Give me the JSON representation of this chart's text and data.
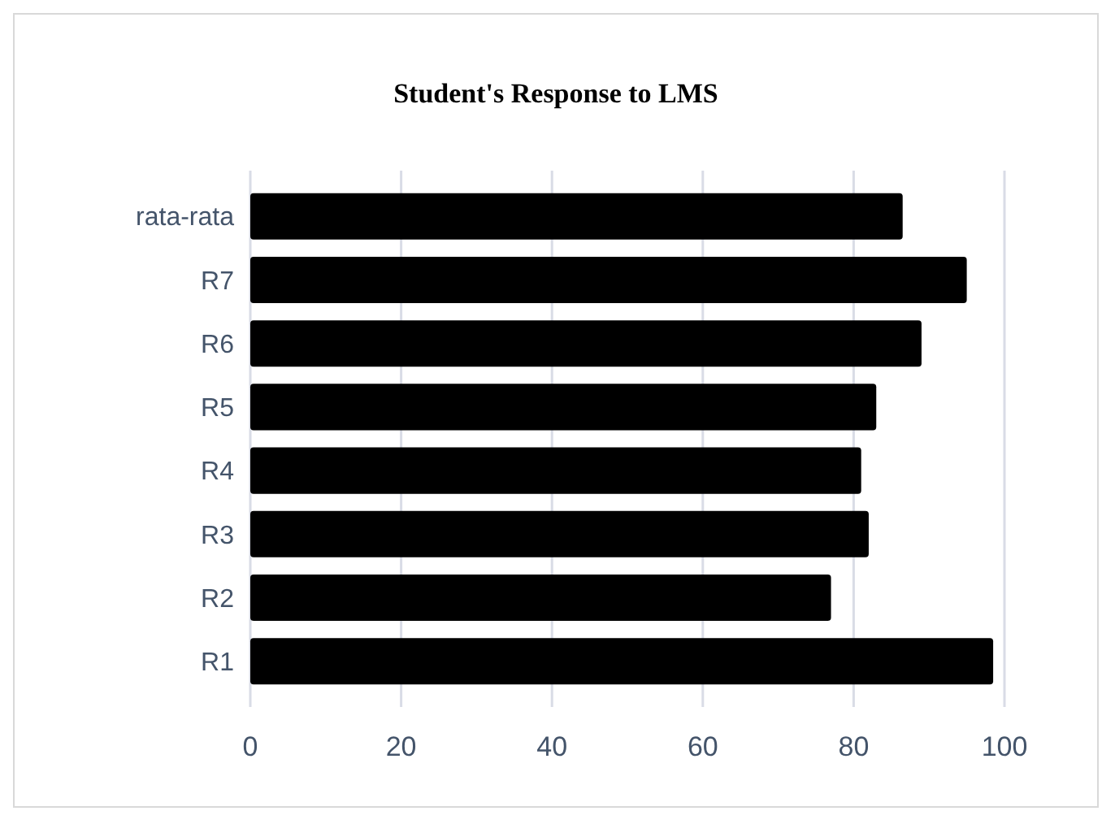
{
  "chart_data": {
    "type": "bar",
    "orientation": "horizontal",
    "title": "Student's Response to LMS",
    "categories": [
      "rata-rata",
      "R7",
      "R6",
      "R5",
      "R4",
      "R3",
      "R2",
      "R1"
    ],
    "values": [
      86.5,
      95,
      89,
      83,
      81,
      82,
      77,
      98.5
    ],
    "color": "#000000",
    "xlim": [
      0,
      100
    ],
    "xticks": [
      0,
      20,
      40,
      60,
      80,
      100
    ],
    "grid": "x"
  }
}
